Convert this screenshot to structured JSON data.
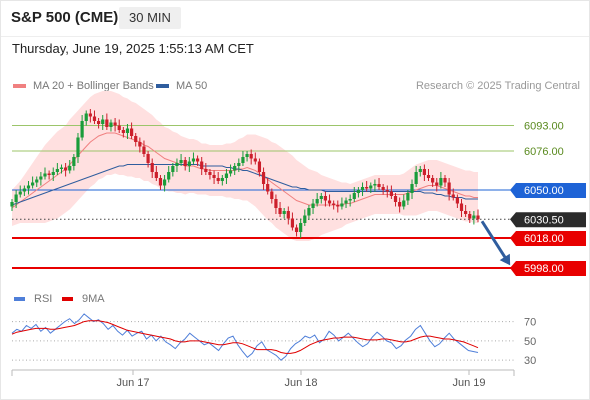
{
  "header": {
    "title": "S&P 500 (CME)",
    "timeframe": "30 MIN",
    "datetime": "Thursday, June 19, 2025 1:55:13 AM CET"
  },
  "legend": {
    "ma20_label": "MA 20 + Bollinger Bands",
    "ma50_label": "MA 50",
    "credit": "Research © 2025 Trading Central",
    "ma20_color": "#f08080",
    "ma50_color": "#2f5d9e"
  },
  "rsi_legend": {
    "rsi_label": "RSI",
    "ma9_label": "9MA",
    "rsi_color": "#4f7fd9",
    "ma9_color": "#e00000"
  },
  "x_axis": {
    "labels": [
      "Jun 17",
      "Jun 18",
      "Jun 19"
    ]
  },
  "chart_data": [
    {
      "type": "candlestick",
      "title": "S&P 500 (CME)",
      "xlabel": "",
      "ylabel": "",
      "ylim": [
        5990,
        6110
      ],
      "x_ticks": [
        "Jun 17",
        "Jun 18",
        "Jun 19"
      ],
      "levels": [
        {
          "value": 6093.0,
          "label": "6093.00",
          "style": "resistance",
          "color": "#9cc56a"
        },
        {
          "value": 6076.0,
          "label": "6076.00",
          "style": "resistance",
          "color": "#9cc56a"
        },
        {
          "value": 6050.0,
          "label": "6050.00",
          "style": "pivot",
          "color": "#1e63d6"
        },
        {
          "value": 6030.5,
          "label": "6030.50",
          "style": "last",
          "color": "#2b2b2b"
        },
        {
          "value": 6018.0,
          "label": "6018.00",
          "style": "support",
          "color": "#e80000"
        },
        {
          "value": 5998.0,
          "label": "5998.00",
          "style": "support",
          "color": "#e80000"
        }
      ],
      "last_price": 6030.5,
      "colors": {
        "up": "#1a9c3a",
        "down": "#cc1f2b",
        "band_fill": "#ffe0e0",
        "ma20": "#f08080",
        "ma50": "#2f5d9e",
        "arrow": "#2f5d9e"
      },
      "closes": [
        6042,
        6047,
        6049,
        6051,
        6053,
        6055,
        6057,
        6059,
        6061,
        6060,
        6062,
        6064,
        6065,
        6063,
        6066,
        6072,
        6085,
        6096,
        6101,
        6099,
        6096,
        6094,
        6097,
        6092,
        6095,
        6093,
        6090,
        6088,
        6091,
        6086,
        6082,
        6079,
        6074,
        6068,
        6062,
        6058,
        6053,
        6057,
        6062,
        6066,
        6068,
        6070,
        6066,
        6069,
        6071,
        6069,
        6064,
        6062,
        6060,
        6058,
        6056,
        6058,
        6061,
        6063,
        6066,
        6068,
        6072,
        6074,
        6071,
        6069,
        6062,
        6054,
        6049,
        6044,
        6038,
        6034,
        6036,
        6031,
        6025,
        6022,
        6028,
        6033,
        6038,
        6041,
        6044,
        6046,
        6043,
        6041,
        6040,
        6039,
        6041,
        6043,
        6044,
        6048,
        6050,
        6052,
        6051,
        6053,
        6054,
        6052,
        6050,
        6049,
        6046,
        6042,
        6039,
        6043,
        6048,
        6054,
        6062,
        6064,
        6060,
        6058,
        6055,
        6053,
        6058,
        6055,
        6047,
        6045,
        6041,
        6036,
        6034,
        6031,
        6033,
        6030.5
      ],
      "ma20": [
        6038,
        6040,
        6042,
        6044,
        6046,
        6048,
        6050,
        6052,
        6054,
        6056,
        6058,
        6060,
        6062,
        6064,
        6067,
        6070,
        6073,
        6076,
        6079,
        6082,
        6084,
        6086,
        6087,
        6088,
        6088,
        6088,
        6087,
        6086,
        6085,
        6084,
        6083,
        6082,
        6080,
        6079,
        6077,
        6075,
        6073,
        6071,
        6070,
        6069,
        6068,
        6067,
        6066,
        6066,
        6066,
        6065,
        6064,
        6064,
        6063,
        6063,
        6063,
        6063,
        6063,
        6063,
        6063,
        6064,
        6064,
        6065,
        6064,
        6063,
        6061,
        6059,
        6057,
        6055,
        6053,
        6051,
        6049,
        6047,
        6045,
        6043,
        6042,
        6041,
        6040,
        6040,
        6040,
        6040,
        6040,
        6040,
        6040,
        6040,
        6040,
        6041,
        6041,
        6042,
        6043,
        6044,
        6045,
        6046,
        6047,
        6047,
        6047,
        6047,
        6047,
        6047,
        6047,
        6047,
        6048,
        6049,
        6050,
        6051,
        6052,
        6053,
        6053,
        6053,
        6052,
        6051,
        6050,
        6049,
        6048,
        6047,
        6046,
        6046,
        6045,
        6045
      ],
      "ma50": [
        6040,
        6041,
        6042,
        6043,
        6044,
        6045,
        6046,
        6047,
        6048,
        6049,
        6050,
        6051,
        6052,
        6053,
        6054,
        6055,
        6056,
        6057,
        6058,
        6059,
        6060,
        6061,
        6062,
        6063,
        6064,
        6065,
        6066,
        6066,
        6067,
        6067,
        6067,
        6067,
        6067,
        6067,
        6067,
        6067,
        6067,
        6067,
        6067,
        6067,
        6067,
        6067,
        6067,
        6067,
        6067,
        6067,
        6066,
        6066,
        6066,
        6066,
        6066,
        6066,
        6065,
        6065,
        6064,
        6064,
        6063,
        6063,
        6062,
        6061,
        6060,
        6059,
        6058,
        6057,
        6056,
        6055,
        6054,
        6053,
        6052,
        6052,
        6051,
        6051,
        6050,
        6050,
        6050,
        6050,
        6049,
        6049,
        6049,
        6049,
        6049,
        6049,
        6049,
        6049,
        6049,
        6049,
        6049,
        6049,
        6049,
        6049,
        6049,
        6049,
        6049,
        6049,
        6049,
        6049,
        6049,
        6049,
        6049,
        6049,
        6048,
        6048,
        6048,
        6047,
        6047,
        6046,
        6046,
        6045,
        6045,
        6045,
        6044,
        6044,
        6044,
        6044
      ],
      "bb_width": [
        12,
        13,
        14,
        16,
        18,
        20,
        22,
        24,
        26,
        27,
        28,
        29,
        29,
        29,
        30,
        30,
        30,
        30,
        30,
        30,
        30,
        29,
        29,
        28,
        28,
        27,
        27,
        26,
        26,
        25,
        25,
        24,
        24,
        23,
        23,
        22,
        22,
        21,
        21,
        20,
        20,
        19,
        19,
        18,
        18,
        18,
        17,
        17,
        17,
        17,
        17,
        17,
        18,
        18,
        19,
        20,
        21,
        22,
        23,
        24,
        25,
        26,
        27,
        27,
        28,
        28,
        28,
        28,
        28,
        27,
        26,
        25,
        24,
        23,
        22,
        20,
        19,
        18,
        17,
        16,
        15,
        14,
        13,
        13,
        13,
        13,
        13,
        13,
        13,
        13,
        13,
        13,
        13,
        13,
        13,
        14,
        15,
        16,
        17,
        17,
        17,
        17,
        17,
        17,
        17,
        17,
        17,
        17,
        17,
        17,
        17,
        17,
        17,
        17
      ],
      "projection_arrow": {
        "from": 6030.5,
        "to": 5998
      }
    },
    {
      "type": "line",
      "title": "RSI",
      "ylim": [
        25,
        80
      ],
      "y_ticks": [
        70,
        50,
        30
      ],
      "series": [
        {
          "name": "RSI",
          "values": [
            58,
            62,
            60,
            66,
            63,
            67,
            60,
            64,
            58,
            62,
            66,
            70,
            73,
            68,
            72,
            78,
            74,
            70,
            72,
            68,
            62,
            66,
            60,
            56,
            61,
            55,
            58,
            60,
            52,
            56,
            50,
            55,
            49,
            46,
            42,
            48,
            52,
            58,
            54,
            50,
            46,
            48,
            44,
            40,
            47,
            53,
            55,
            46,
            39,
            33,
            37,
            45,
            49,
            41,
            38,
            35,
            30,
            34,
            42,
            47,
            50,
            55,
            53,
            56,
            48,
            52,
            60,
            56,
            50,
            54,
            58,
            53,
            48,
            44,
            47,
            54,
            59,
            55,
            50,
            48,
            42,
            45,
            51,
            55,
            62,
            66,
            58,
            50,
            44,
            47,
            53,
            58,
            52,
            48,
            44,
            40,
            39,
            38
          ]
        },
        {
          "name": "9MA",
          "values": [
            57,
            59,
            60,
            61,
            62,
            63,
            63,
            63,
            62,
            62,
            63,
            64,
            65,
            66,
            68,
            70,
            71,
            71,
            71,
            70,
            69,
            67,
            65,
            63,
            61,
            60,
            59,
            58,
            57,
            56,
            55,
            54,
            53,
            52,
            50,
            49,
            49,
            50,
            50,
            50,
            49,
            48,
            47,
            46,
            46,
            47,
            48,
            48,
            47,
            45,
            43,
            41,
            41,
            41,
            41,
            40,
            38,
            37,
            37,
            38,
            40,
            43,
            46,
            48,
            50,
            51,
            52,
            53,
            53,
            54,
            54,
            54,
            53,
            52,
            51,
            51,
            51,
            52,
            52,
            51,
            50,
            49,
            49,
            50,
            52,
            54,
            55,
            55,
            54,
            53,
            52,
            52,
            51,
            50,
            49,
            47,
            45,
            43
          ]
        }
      ]
    }
  ]
}
